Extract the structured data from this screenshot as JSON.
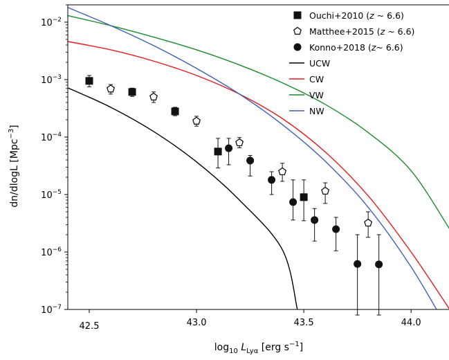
{
  "chart_data": {
    "type": "line",
    "xlabel": "log₁₀ L_Lyα [erg s⁻¹]",
    "xlabel_parts": {
      "pre": "log",
      "sub": "10",
      "mid": " L",
      "sub2": "Lyα",
      "post": " [erg s",
      "sup": "−1",
      "end": "]"
    },
    "ylabel": "dn/dlogL [Mpc⁻³]",
    "ylabel_parts": {
      "pre": "dn/dlogL [Mpc",
      "sup": "−3",
      "end": "]"
    },
    "xlim": [
      42.4,
      44.18
    ],
    "ylim": [
      1e-07,
      0.02
    ],
    "yscale": "log",
    "grid": false,
    "legend_position": "top-right",
    "x_ticks": [
      {
        "value": 42.5,
        "label": "42.5"
      },
      {
        "value": 43.0,
        "label": "43.0"
      },
      {
        "value": 43.5,
        "label": "43.5"
      },
      {
        "value": 44.0,
        "label": "44.0"
      }
    ],
    "y_ticks": [
      {
        "exp": -7,
        "base": "10",
        "sup": "−7"
      },
      {
        "exp": -6,
        "base": "10",
        "sup": "−6"
      },
      {
        "exp": -5,
        "base": "10",
        "sup": "−5"
      },
      {
        "exp": -4,
        "base": "10",
        "sup": "−4"
      },
      {
        "exp": -3,
        "base": "10",
        "sup": "−3"
      },
      {
        "exp": -2,
        "base": "10",
        "sup": "−2"
      }
    ],
    "lines": [
      {
        "name": "UCW",
        "color": "#000000",
        "x": [
          42.4,
          42.6,
          42.8,
          43.0,
          43.2,
          43.4,
          43.47
        ],
        "y": [
          0.00072,
          0.00033,
          0.000125,
          3.7e-05,
          8e-06,
          1.1e-06,
          1e-07
        ]
      },
      {
        "name": "CW",
        "color": "#e41a1c",
        "x": [
          42.4,
          42.6,
          42.8,
          43.0,
          43.2,
          43.4,
          43.6,
          43.8,
          44.0,
          44.18
        ],
        "y": [
          0.0046,
          0.0033,
          0.0021,
          0.00118,
          0.00056,
          0.00021,
          5.5e-05,
          9.5e-06,
          1e-06,
          1e-07
        ]
      },
      {
        "name": "VW",
        "color": "#1a8a2c",
        "x": [
          42.4,
          42.6,
          42.8,
          43.0,
          43.2,
          43.4,
          43.6,
          43.8,
          44.0,
          44.18
        ],
        "y": [
          0.013,
          0.0087,
          0.0055,
          0.0033,
          0.0018,
          0.00088,
          0.00037,
          0.00012,
          2.6e-05,
          2.5e-06
        ]
      },
      {
        "name": "NW",
        "color": "#3f5fb5",
        "x": [
          42.4,
          42.6,
          42.8,
          43.0,
          43.2,
          43.4,
          43.6,
          43.8,
          44.0,
          44.18
        ],
        "y": [
          0.018,
          0.0087,
          0.0039,
          0.00157,
          0.00056,
          0.000165,
          3.8e-05,
          6e-06,
          5.5e-07,
          4e-08
        ]
      }
    ],
    "points": [
      {
        "name": "Ouchi+2010 (z ~ 6.6)",
        "label_pre": "Ouchi+2010 (",
        "label_z": "z",
        "label_post": " ~ 6.6)",
        "marker": "square",
        "x": [
          42.5,
          42.7,
          42.9,
          43.1,
          43.5
        ],
        "y": [
          0.00095,
          0.00061,
          0.00028,
          5.6e-05,
          9e-06
        ],
        "yerr_low": [
          0.00075,
          0.00051,
          0.000235,
          2.9e-05,
          3.5e-06
        ],
        "yerr_high": [
          0.00118,
          0.00071,
          0.00033,
          9.5e-05,
          1.8e-05
        ]
      },
      {
        "name": "Matthee+2015 (z ~ 6.6)",
        "label_pre": "Matthee+2015 (",
        "label_z": "z",
        "label_post": " ~ 6.6)",
        "marker": "pentagon",
        "x": [
          42.6,
          42.8,
          43.0,
          43.2,
          43.4,
          43.6,
          43.8
        ],
        "y": [
          0.00069,
          0.0005,
          0.00019,
          8e-05,
          2.5e-05,
          1.15e-05,
          3.2e-06
        ],
        "yerr_low": [
          0.00056,
          0.0004,
          0.000155,
          6.5e-05,
          1.7e-05,
          7e-06,
          1.8e-06
        ],
        "yerr_high": [
          0.00082,
          0.00061,
          0.00023,
          9.8e-05,
          3.5e-05,
          1.6e-05,
          5e-06
        ]
      },
      {
        "name": "Konno+2018 (z~ 6.6)",
        "label_pre": "Konno+2018 (",
        "label_z": "z",
        "label_post": "~ 6.6)",
        "marker": "circle",
        "x": [
          43.15,
          43.25,
          43.35,
          43.45,
          43.55,
          43.65,
          43.75,
          43.85
        ],
        "y": [
          6.4e-05,
          3.9e-05,
          1.8e-05,
          7.4e-06,
          3.6e-06,
          2.5e-06,
          6.2e-07,
          6.1e-07
        ],
        "yerr_low": [
          3.3e-05,
          2.1e-05,
          1e-05,
          3.6e-06,
          1.55e-06,
          1.05e-06,
          8e-08,
          8e-08
        ],
        "yerr_high": [
          9.5e-05,
          4.8e-05,
          2.5e-05,
          1.8e-05,
          5.7e-06,
          4e-06,
          2e-06,
          2e-06
        ]
      }
    ]
  }
}
